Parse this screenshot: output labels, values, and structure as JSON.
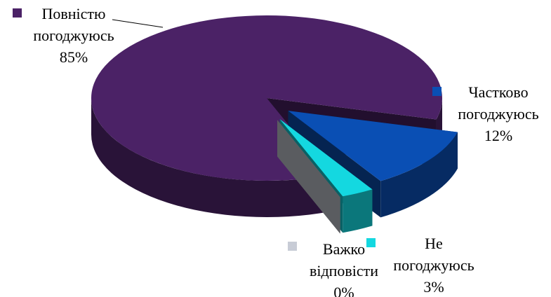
{
  "chart_data": {
    "type": "pie",
    "categories": [
      "Повністю погоджуюсь",
      "Частково погоджуюсь",
      "Не погоджуюсь",
      "Важко відповісти"
    ],
    "values": [
      85,
      12,
      3,
      0
    ],
    "value_labels": [
      "85%",
      "12%",
      "3%",
      "0%"
    ],
    "colors": [
      "#4b2266",
      "#0a4fb4",
      "#14d8e0",
      "#c8ccd6"
    ]
  }
}
